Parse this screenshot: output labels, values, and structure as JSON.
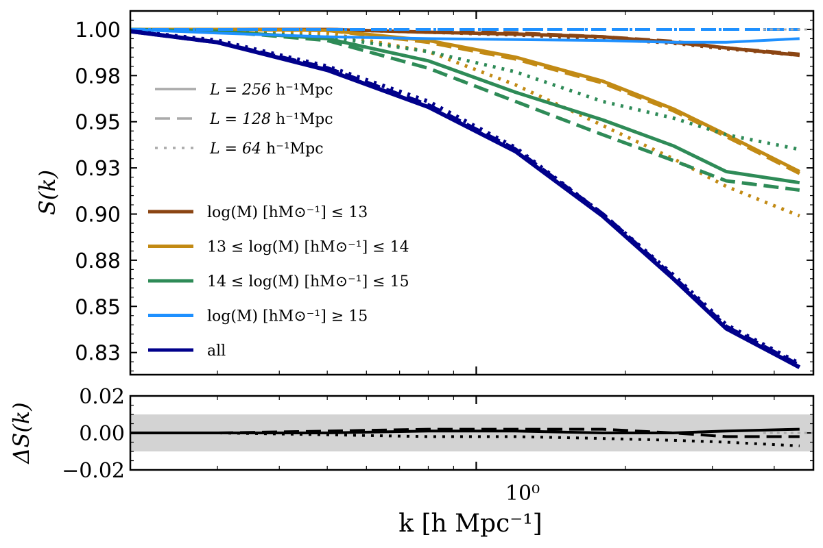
{
  "chart_data": [
    {
      "type": "line",
      "panel": "main",
      "x_scale": "log",
      "xlim": [
        0.2,
        4.8
      ],
      "ylim": [
        0.813,
        1.01
      ],
      "ylabel": "S(k)",
      "yticks": [
        1.0,
        0.975,
        0.95,
        0.925,
        0.9,
        0.875,
        0.85,
        0.825
      ],
      "ytick_labels": [
        "1.00",
        "0.98",
        "0.95",
        "0.93",
        "0.90",
        "0.88",
        "0.85",
        "0.83"
      ],
      "x": [
        0.2,
        0.3,
        0.5,
        0.8,
        1.2,
        1.8,
        2.5,
        3.2,
        4.5
      ],
      "series": [
        {
          "name": "log(M) [hM⊙⁻¹] ≤ 13",
          "color": "#8B4513",
          "box": "L256",
          "values": [
            1.0,
            1.0,
            1.0,
            0.9985,
            0.9975,
            0.996,
            0.993,
            0.99,
            0.986
          ],
          "width": 5
        },
        {
          "name": "log(M) [hM⊙⁻¹] ≤ 13",
          "color": "#8B4513",
          "box": "L128",
          "values": [
            1.0,
            1.0,
            1.0,
            0.999,
            0.998,
            0.996,
            0.9935,
            0.99,
            0.9865
          ],
          "width": 5
        },
        {
          "name": "log(M) [hM⊙⁻¹] ≤ 13",
          "color": "#8B4513",
          "box": "L64",
          "values": [
            1.0,
            1.0,
            1.0,
            0.9985,
            0.997,
            0.995,
            0.9925,
            0.9895,
            0.986
          ],
          "width": 5
        },
        {
          "name": "13 ≤ log(M) [hM⊙⁻¹] ≤ 14",
          "color": "#C28A14",
          "box": "L256",
          "values": [
            1.0,
            1.0,
            0.9995,
            0.994,
            0.985,
            0.972,
            0.957,
            0.943,
            0.923
          ],
          "width": 5
        },
        {
          "name": "13 ≤ log(M) [hM⊙⁻¹] ≤ 14",
          "color": "#C28A14",
          "box": "L128",
          "values": [
            1.0,
            1.0,
            0.9995,
            0.993,
            0.984,
            0.971,
            0.956,
            0.942,
            0.922
          ],
          "width": 5
        },
        {
          "name": "13 ≤ log(M) [hM⊙⁻¹] ≤ 14",
          "color": "#C28A14",
          "box": "L64",
          "values": [
            1.0,
            1.0,
            0.998,
            0.988,
            0.97,
            0.948,
            0.93,
            0.915,
            0.899
          ],
          "width": 5
        },
        {
          "name": "14 ≤ log(M) [hM⊙⁻¹] ≤ 15",
          "color": "#2E8B57",
          "box": "L256",
          "values": [
            1.0,
            0.999,
            0.995,
            0.983,
            0.966,
            0.951,
            0.937,
            0.923,
            0.917
          ],
          "width": 5
        },
        {
          "name": "14 ≤ log(M) [hM⊙⁻¹] ≤ 15",
          "color": "#2E8B57",
          "box": "L128",
          "values": [
            1.0,
            0.999,
            0.994,
            0.979,
            0.961,
            0.943,
            0.929,
            0.918,
            0.913
          ],
          "width": 5
        },
        {
          "name": "14 ≤ log(M) [hM⊙⁻¹] ≤ 15",
          "color": "#2E8B57",
          "box": "L64",
          "values": [
            1.0,
            0.999,
            0.996,
            0.988,
            0.977,
            0.961,
            0.952,
            0.943,
            0.935
          ],
          "width": 5
        },
        {
          "name": "log(M) [hM⊙⁻¹] ≥ 15",
          "color": "#1E90FF",
          "box": "L256",
          "values": [
            1.0,
            0.998,
            0.996,
            0.995,
            0.9945,
            0.994,
            0.993,
            0.993,
            0.995
          ],
          "width": 4
        },
        {
          "name": "log(M) [hM⊙⁻¹] ≥ 15",
          "color": "#1E90FF",
          "box": "L128",
          "values": [
            1.0,
            1.0,
            1.0,
            1.0,
            1.0,
            1.0,
            1.0,
            1.0,
            1.0
          ],
          "width": 4
        },
        {
          "name": "log(M) [hM⊙⁻¹] ≥ 15",
          "color": "#1E90FF",
          "box": "L64",
          "values": [
            1.0,
            1.0,
            1.0,
            1.0,
            1.0,
            1.0,
            1.0,
            1.0,
            1.0
          ],
          "width": 4
        },
        {
          "name": "all",
          "color": "#00008B",
          "box": "L256",
          "values": [
            0.999,
            0.993,
            0.978,
            0.958,
            0.934,
            0.899,
            0.865,
            0.838,
            0.817
          ],
          "width": 6
        },
        {
          "name": "all",
          "color": "#00008B",
          "box": "L128",
          "values": [
            0.999,
            0.993,
            0.979,
            0.959,
            0.935,
            0.9,
            0.866,
            0.839,
            0.818
          ],
          "width": 6
        },
        {
          "name": "all",
          "color": "#00008B",
          "box": "L64",
          "values": [
            0.999,
            0.994,
            0.98,
            0.961,
            0.936,
            0.9,
            0.867,
            0.84,
            0.819
          ],
          "width": 6
        }
      ]
    },
    {
      "type": "line",
      "panel": "residual",
      "x_scale": "log",
      "xlim": [
        0.2,
        4.8
      ],
      "ylim": [
        -0.02,
        0.02
      ],
      "ylabel": "ΔS(k)",
      "xlabel": "k [h Mpc⁻¹]",
      "yticks": [
        0.02,
        0.0,
        -0.02
      ],
      "ytick_labels": [
        "0.02",
        "0.00",
        "−0.02"
      ],
      "xtick_labels": [
        "10⁰"
      ],
      "band": [
        -0.01,
        0.01
      ],
      "x": [
        0.2,
        0.3,
        0.5,
        0.8,
        1.2,
        1.8,
        2.5,
        3.2,
        4.5
      ],
      "series": [
        {
          "name": "L256",
          "values": [
            0.0,
            0.0,
            0.0,
            0.001,
            0.001,
            0.0,
            0.0,
            0.001,
            0.002
          ]
        },
        {
          "name": "L128",
          "values": [
            0.0,
            0.0,
            0.001,
            0.002,
            0.002,
            0.002,
            0.0,
            -0.002,
            -0.002
          ]
        },
        {
          "name": "L64",
          "values": [
            0.0,
            0.0,
            -0.001,
            -0.002,
            -0.002,
            -0.003,
            -0.004,
            -0.005,
            -0.007
          ]
        }
      ]
    }
  ],
  "legend_styles": [
    {
      "key": "L256",
      "dash": "solid",
      "name": "L = 256",
      "unit": "h⁻¹Mpc"
    },
    {
      "key": "L128",
      "dash": "dashed",
      "name": "L = 128",
      "unit": "h⁻¹Mpc"
    },
    {
      "key": "L64",
      "dash": "dotted",
      "name": "L =  64",
      "unit": "h⁻¹Mpc"
    }
  ],
  "legend_mass": [
    {
      "label": "log(M) [hM⊙⁻¹] ≤ 13",
      "color": "#8B4513"
    },
    {
      "label": "13 ≤ log(M) [hM⊙⁻¹] ≤ 14",
      "color": "#C28A14"
    },
    {
      "label": "14 ≤ log(M) [hM⊙⁻¹] ≤ 15",
      "color": "#2E8B57"
    },
    {
      "label": "log(M) [hM⊙⁻¹] ≥ 15",
      "color": "#1E90FF"
    },
    {
      "label": "all",
      "color": "#00008B"
    }
  ],
  "style_color": "#aaaaaa",
  "band_color": "#d3d3d3"
}
